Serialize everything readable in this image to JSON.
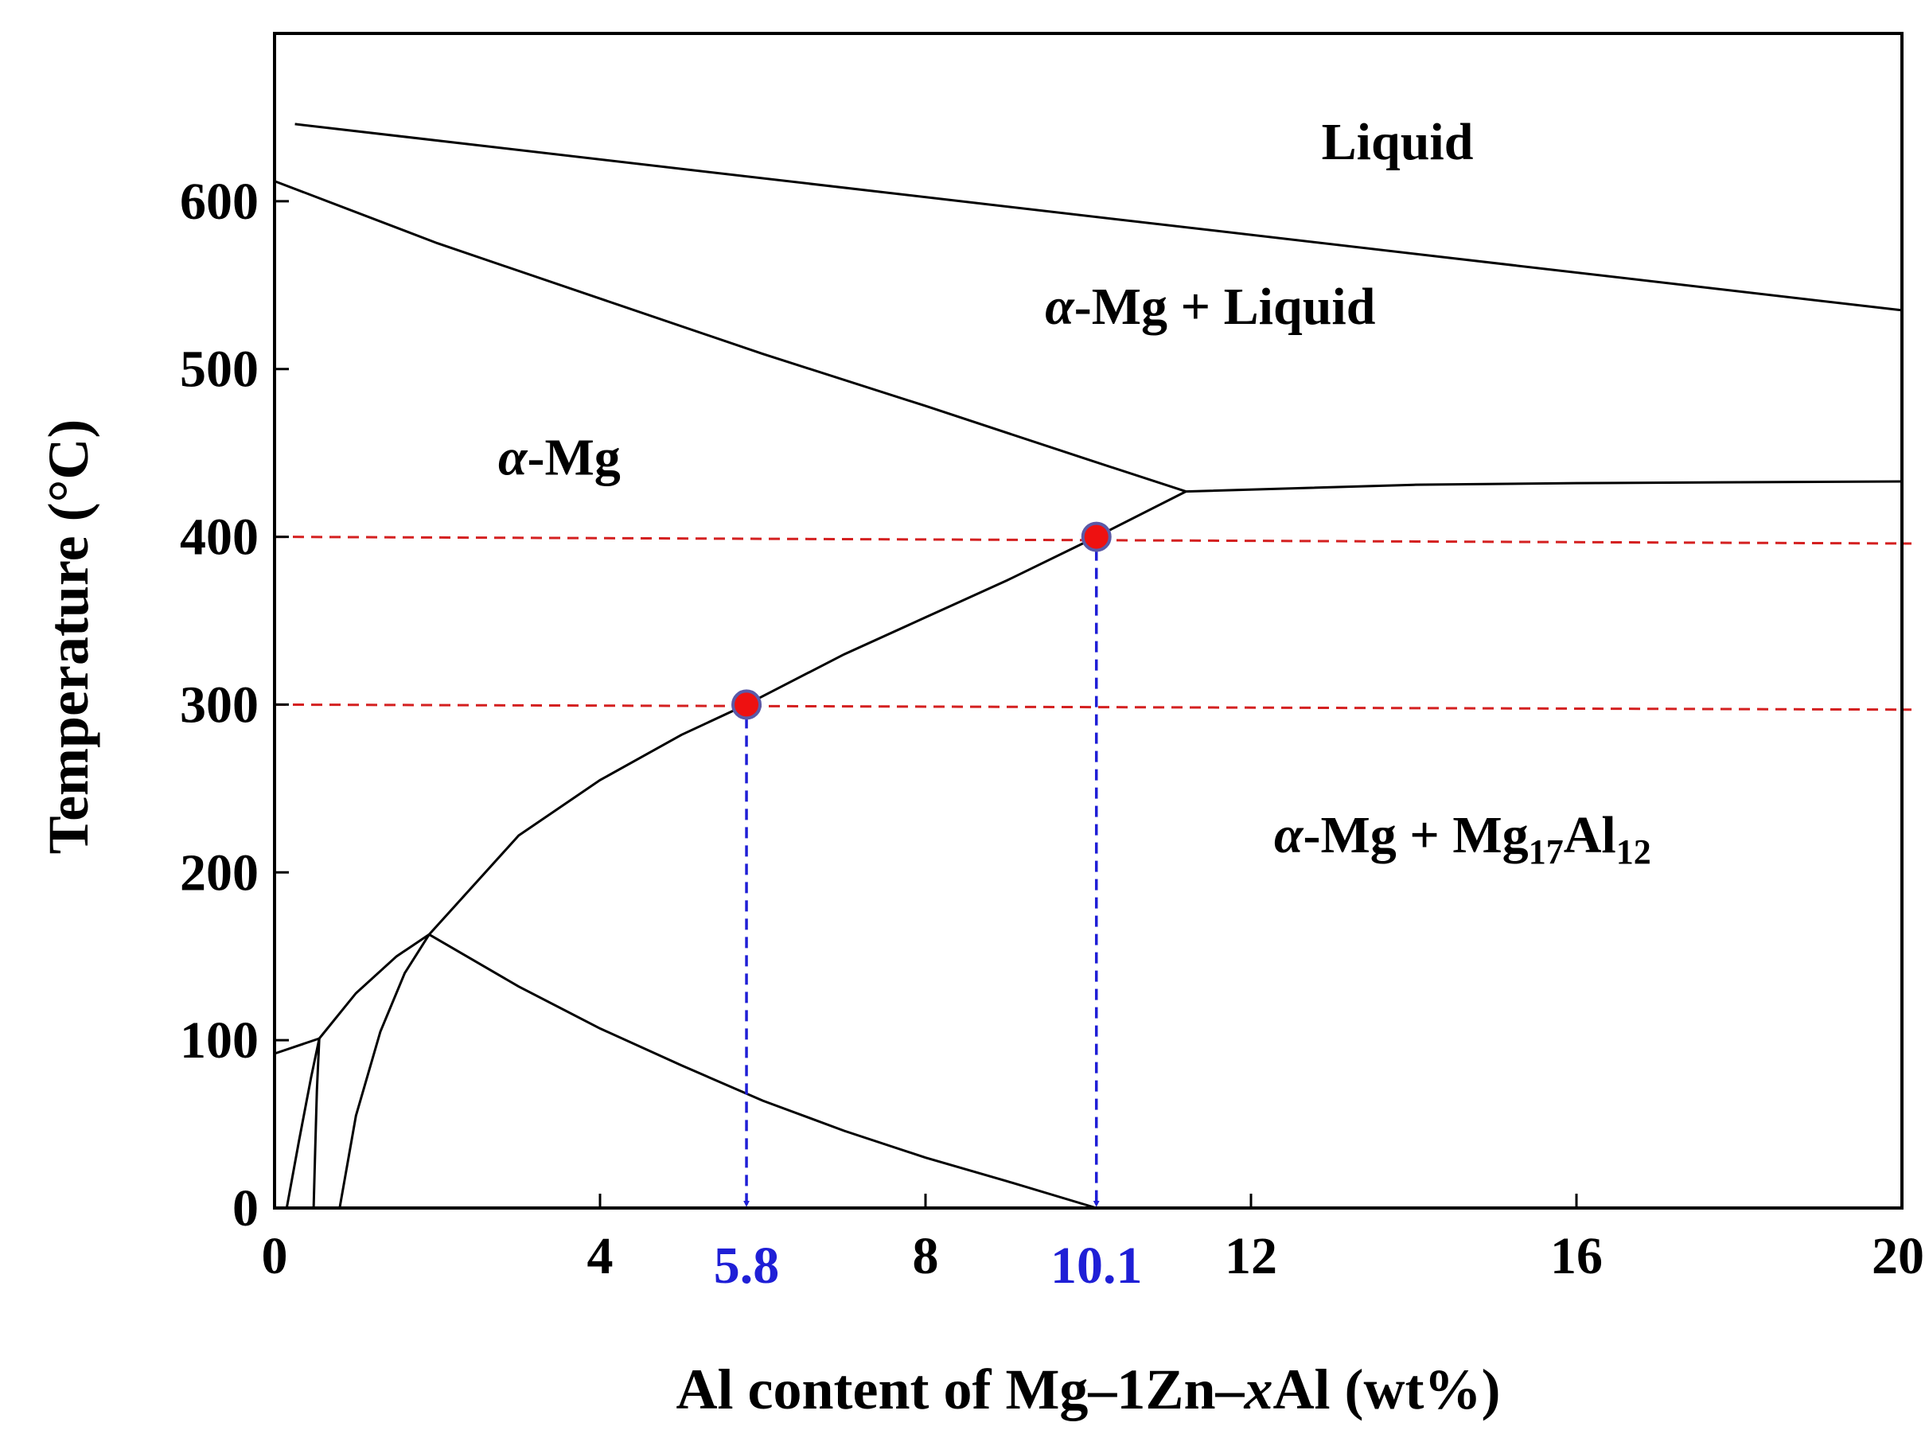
{
  "chart_data": {
    "type": "line",
    "xlabel": {
      "prefix": "Al content of Mg–1Zn–",
      "italic": "x",
      "suffix": "Al (wt%)"
    },
    "ylabel": "Temperature (°C)",
    "xlim": [
      0,
      20
    ],
    "ylim": [
      0,
      700
    ],
    "x_ticks": [
      0,
      4,
      8,
      12,
      16,
      20
    ],
    "x_tick_labels": [
      "0",
      "4",
      "8",
      "12",
      "16",
      "20"
    ],
    "highlight_x_ticks": [
      5.8,
      10.1
    ],
    "highlight_x_tick_labels": [
      "5.8",
      "10.1"
    ],
    "y_ticks": [
      0,
      100,
      200,
      300,
      400,
      500,
      600
    ],
    "y_tick_labels": [
      "0",
      "100",
      "200",
      "300",
      "400",
      "500",
      "600"
    ],
    "grid": false,
    "phase_boundaries": [
      {
        "x": [
          0.25,
          20
        ],
        "y": [
          646,
          535
        ]
      },
      {
        "x": [
          0,
          2,
          4,
          6,
          8,
          10,
          11.2
        ],
        "y": [
          612,
          575,
          542,
          509,
          478,
          446,
          427
        ]
      },
      {
        "x": [
          1.9,
          3,
          4,
          5,
          5.8,
          7,
          8,
          9,
          10.1,
          11.2
        ],
        "y": [
          163,
          222,
          255,
          282,
          300,
          330,
          352,
          374,
          400,
          427
        ]
      },
      {
        "x": [
          11.2,
          14,
          16,
          20
        ],
        "y": [
          427,
          431,
          432,
          433
        ]
      },
      {
        "x": [
          0,
          0.55
        ],
        "y": [
          92,
          101
        ]
      },
      {
        "x": [
          0.55,
          1,
          1.5,
          1.9
        ],
        "y": [
          101,
          128,
          150,
          163
        ]
      },
      {
        "x": [
          0.15,
          0.3,
          0.45,
          0.55
        ],
        "y": [
          0,
          40,
          78,
          101
        ]
      },
      {
        "x": [
          0.48,
          0.5,
          0.52,
          0.55
        ],
        "y": [
          0,
          35,
          70,
          101
        ]
      },
      {
        "x": [
          0.8,
          1.0,
          1.3,
          1.6,
          1.9
        ],
        "y": [
          0,
          55,
          105,
          140,
          163
        ]
      },
      {
        "x": [
          1.9,
          3,
          4,
          5,
          6,
          7,
          8,
          9,
          10.1
        ],
        "y": [
          163,
          132,
          107,
          85,
          64,
          46,
          30,
          16,
          0
        ]
      }
    ],
    "reference_lines": [
      {
        "x": [
          0,
          20
        ],
        "y": [
          400,
          396
        ]
      },
      {
        "x": [
          0,
          20
        ],
        "y": [
          300,
          297
        ]
      }
    ],
    "marker_points": [
      {
        "x": 5.8,
        "y": 300
      },
      {
        "x": 10.1,
        "y": 400
      }
    ],
    "drop_lines": [
      {
        "x": 5.8,
        "y_from": 300,
        "y_to": 0
      },
      {
        "x": 10.1,
        "y_from": 400,
        "y_to": 0
      }
    ],
    "region_labels": [
      {
        "key": "liquid",
        "parts": [
          {
            "t": "Liquid"
          }
        ],
        "x": 13.8,
        "y": 625
      },
      {
        "key": "alpha-mg-liquid",
        "parts": [
          {
            "t": "α",
            "i": true
          },
          {
            "t": "-Mg + Liquid"
          }
        ],
        "x": 11.5,
        "y": 527
      },
      {
        "key": "alpha-mg",
        "parts": [
          {
            "t": "α",
            "i": true
          },
          {
            "t": "-Mg"
          }
        ],
        "x": 3.5,
        "y": 437
      },
      {
        "key": "alpha-mg-mg17al12",
        "parts": [
          {
            "t": "α",
            "i": true
          },
          {
            "t": "-Mg + Mg"
          },
          {
            "t": "17",
            "sub": true
          },
          {
            "t": "Al"
          },
          {
            "t": "12",
            "sub": true
          }
        ],
        "x": 14.6,
        "y": 212
      }
    ],
    "colors": {
      "boundary": "#000000",
      "reference": "#d42020",
      "drop": "#1f1fd6",
      "marker_fill": "#ee1111",
      "marker_stroke": "#5a5aa8",
      "highlight_tick": "#1f1fd6"
    }
  }
}
